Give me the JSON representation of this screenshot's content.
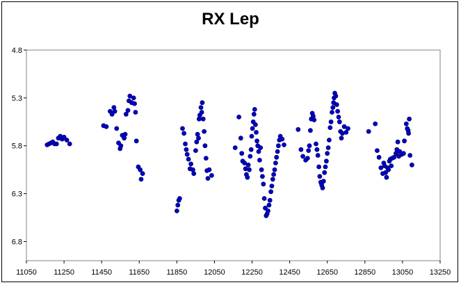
{
  "chart_data": {
    "type": "scatter",
    "title": "RX Lep",
    "xlabel": "",
    "ylabel": "",
    "xlim": [
      11050,
      13250
    ],
    "ylim": [
      4.8,
      7.0
    ],
    "y_inverted": true,
    "x_ticks": [
      "11050",
      "11250",
      "11450",
      "11650",
      "11850",
      "12050",
      "12250",
      "12450",
      "12650",
      "12850",
      "13050",
      "13250"
    ],
    "y_ticks": [
      "4.8",
      "5.3",
      "5.8",
      "6.3",
      "6.8"
    ],
    "grid": false,
    "legend": "none",
    "marker_color": "#0000cc",
    "marker_edge": "#000066",
    "series": [
      {
        "points": [
          [
            11160,
            5.79
          ],
          [
            11170,
            5.78
          ],
          [
            11180,
            5.77
          ],
          [
            11190,
            5.76
          ],
          [
            11200,
            5.78
          ],
          [
            11210,
            5.78
          ],
          [
            11220,
            5.72
          ],
          [
            11230,
            5.7
          ],
          [
            11240,
            5.73
          ],
          [
            11250,
            5.71
          ],
          [
            11265,
            5.74
          ],
          [
            11280,
            5.78
          ],
          [
            11460,
            5.59
          ],
          [
            11475,
            5.6
          ],
          [
            11495,
            5.44
          ],
          [
            11505,
            5.47
          ],
          [
            11515,
            5.4
          ],
          [
            11520,
            5.44
          ],
          [
            11530,
            5.62
          ],
          [
            11540,
            5.77
          ],
          [
            11548,
            5.83
          ],
          [
            11552,
            5.8
          ],
          [
            11560,
            5.69
          ],
          [
            11570,
            5.72
          ],
          [
            11575,
            5.68
          ],
          [
            11580,
            5.47
          ],
          [
            11590,
            5.43
          ],
          [
            11595,
            5.33
          ],
          [
            11600,
            5.28
          ],
          [
            11610,
            5.35
          ],
          [
            11620,
            5.3
          ],
          [
            11625,
            5.36
          ],
          [
            11630,
            5.45
          ],
          [
            11635,
            5.75
          ],
          [
            11645,
            6.02
          ],
          [
            11655,
            6.05
          ],
          [
            11660,
            6.15
          ],
          [
            11668,
            6.09
          ],
          [
            11850,
            6.48
          ],
          [
            11855,
            6.42
          ],
          [
            11860,
            6.37
          ],
          [
            11865,
            6.35
          ],
          [
            11880,
            5.62
          ],
          [
            11888,
            5.67
          ],
          [
            11895,
            5.78
          ],
          [
            11900,
            5.84
          ],
          [
            11905,
            5.89
          ],
          [
            11912,
            5.94
          ],
          [
            11920,
            6.04
          ],
          [
            11925,
            5.99
          ],
          [
            11935,
            6.05
          ],
          [
            11940,
            6.09
          ],
          [
            11950,
            5.85
          ],
          [
            11955,
            5.76
          ],
          [
            11960,
            5.68
          ],
          [
            11965,
            5.72
          ],
          [
            11968,
            5.52
          ],
          [
            11972,
            5.48
          ],
          [
            11978,
            5.4
          ],
          [
            11982,
            5.45
          ],
          [
            11985,
            5.35
          ],
          [
            11990,
            5.52
          ],
          [
            11995,
            5.65
          ],
          [
            12000,
            5.8
          ],
          [
            12005,
            5.93
          ],
          [
            12010,
            6.06
          ],
          [
            12015,
            6.14
          ],
          [
            12022,
            6.05
          ],
          [
            12035,
            6.11
          ],
          [
            12160,
            5.82
          ],
          [
            12180,
            5.5
          ],
          [
            12190,
            5.72
          ],
          [
            12195,
            5.88
          ],
          [
            12200,
            5.96
          ],
          [
            12210,
            5.98
          ],
          [
            12215,
            6.04
          ],
          [
            12220,
            6.1
          ],
          [
            12225,
            6.13
          ],
          [
            12230,
            6.0
          ],
          [
            12235,
            6.05
          ],
          [
            12240,
            5.91
          ],
          [
            12245,
            5.84
          ],
          [
            12248,
            5.7
          ],
          [
            12252,
            5.62
          ],
          [
            12256,
            5.55
          ],
          [
            12260,
            5.47
          ],
          [
            12264,
            5.42
          ],
          [
            12268,
            5.58
          ],
          [
            12272,
            5.66
          ],
          [
            12276,
            5.75
          ],
          [
            12280,
            5.8
          ],
          [
            12285,
            5.86
          ],
          [
            12290,
            5.95
          ],
          [
            12295,
            5.82
          ],
          [
            12300,
            6.05
          ],
          [
            12305,
            6.12
          ],
          [
            12310,
            6.2
          ],
          [
            12315,
            6.35
          ],
          [
            12320,
            6.45
          ],
          [
            12325,
            6.53
          ],
          [
            12330,
            6.51
          ],
          [
            12335,
            6.48
          ],
          [
            12340,
            6.42
          ],
          [
            12345,
            6.37
          ],
          [
            12350,
            6.28
          ],
          [
            12355,
            6.22
          ],
          [
            12360,
            6.15
          ],
          [
            12365,
            6.1
          ],
          [
            12370,
            6.05
          ],
          [
            12375,
            5.98
          ],
          [
            12380,
            5.92
          ],
          [
            12385,
            5.86
          ],
          [
            12390,
            5.8
          ],
          [
            12395,
            5.74
          ],
          [
            12400,
            5.7
          ],
          [
            12410,
            5.73
          ],
          [
            12420,
            5.79
          ],
          [
            12495,
            5.63
          ],
          [
            12510,
            5.84
          ],
          [
            12520,
            5.91
          ],
          [
            12535,
            5.95
          ],
          [
            12545,
            5.93
          ],
          [
            12550,
            5.85
          ],
          [
            12555,
            5.8
          ],
          [
            12560,
            5.64
          ],
          [
            12565,
            5.52
          ],
          [
            12570,
            5.46
          ],
          [
            12575,
            5.49
          ],
          [
            12580,
            5.53
          ],
          [
            12590,
            5.78
          ],
          [
            12595,
            5.84
          ],
          [
            12600,
            5.9
          ],
          [
            12605,
            6.02
          ],
          [
            12610,
            6.12
          ],
          [
            12615,
            6.18
          ],
          [
            12620,
            6.21
          ],
          [
            12625,
            6.24
          ],
          [
            12630,
            6.17
          ],
          [
            12635,
            6.08
          ],
          [
            12640,
            6.02
          ],
          [
            12645,
            5.96
          ],
          [
            12650,
            5.88
          ],
          [
            12655,
            5.82
          ],
          [
            12660,
            5.74
          ],
          [
            12665,
            5.61
          ],
          [
            12670,
            5.55
          ],
          [
            12675,
            5.45
          ],
          [
            12680,
            5.4
          ],
          [
            12683,
            5.35
          ],
          [
            12686,
            5.3
          ],
          [
            12690,
            5.25
          ],
          [
            12695,
            5.28
          ],
          [
            12700,
            5.37
          ],
          [
            12705,
            5.44
          ],
          [
            12710,
            5.5
          ],
          [
            12715,
            5.55
          ],
          [
            12720,
            5.65
          ],
          [
            12725,
            5.72
          ],
          [
            12730,
            5.67
          ],
          [
            12740,
            5.6
          ],
          [
            12750,
            5.66
          ],
          [
            12760,
            5.62
          ],
          [
            12870,
            5.65
          ],
          [
            12905,
            5.57
          ],
          [
            12915,
            5.85
          ],
          [
            12925,
            5.92
          ],
          [
            12935,
            6.03
          ],
          [
            12945,
            6.09
          ],
          [
            12950,
            5.98
          ],
          [
            12955,
            6.01
          ],
          [
            12960,
            6.08
          ],
          [
            12965,
            6.13
          ],
          [
            12970,
            6.03
          ],
          [
            12975,
            6.05
          ],
          [
            12980,
            5.96
          ],
          [
            12985,
            5.94
          ],
          [
            12990,
            6.01
          ],
          [
            12995,
            5.93
          ],
          [
            13005,
            5.92
          ],
          [
            13015,
            5.88
          ],
          [
            13020,
            5.84
          ],
          [
            13025,
            5.76
          ],
          [
            13030,
            5.91
          ],
          [
            13035,
            5.86
          ],
          [
            13045,
            5.89
          ],
          [
            13055,
            5.88
          ],
          [
            13060,
            5.75
          ],
          [
            13070,
            5.57
          ],
          [
            13075,
            5.62
          ],
          [
            13080,
            5.64
          ],
          [
            13082,
            5.67
          ],
          [
            13086,
            5.52
          ],
          [
            13090,
            5.9
          ],
          [
            13100,
            6.0
          ]
        ]
      }
    ]
  }
}
